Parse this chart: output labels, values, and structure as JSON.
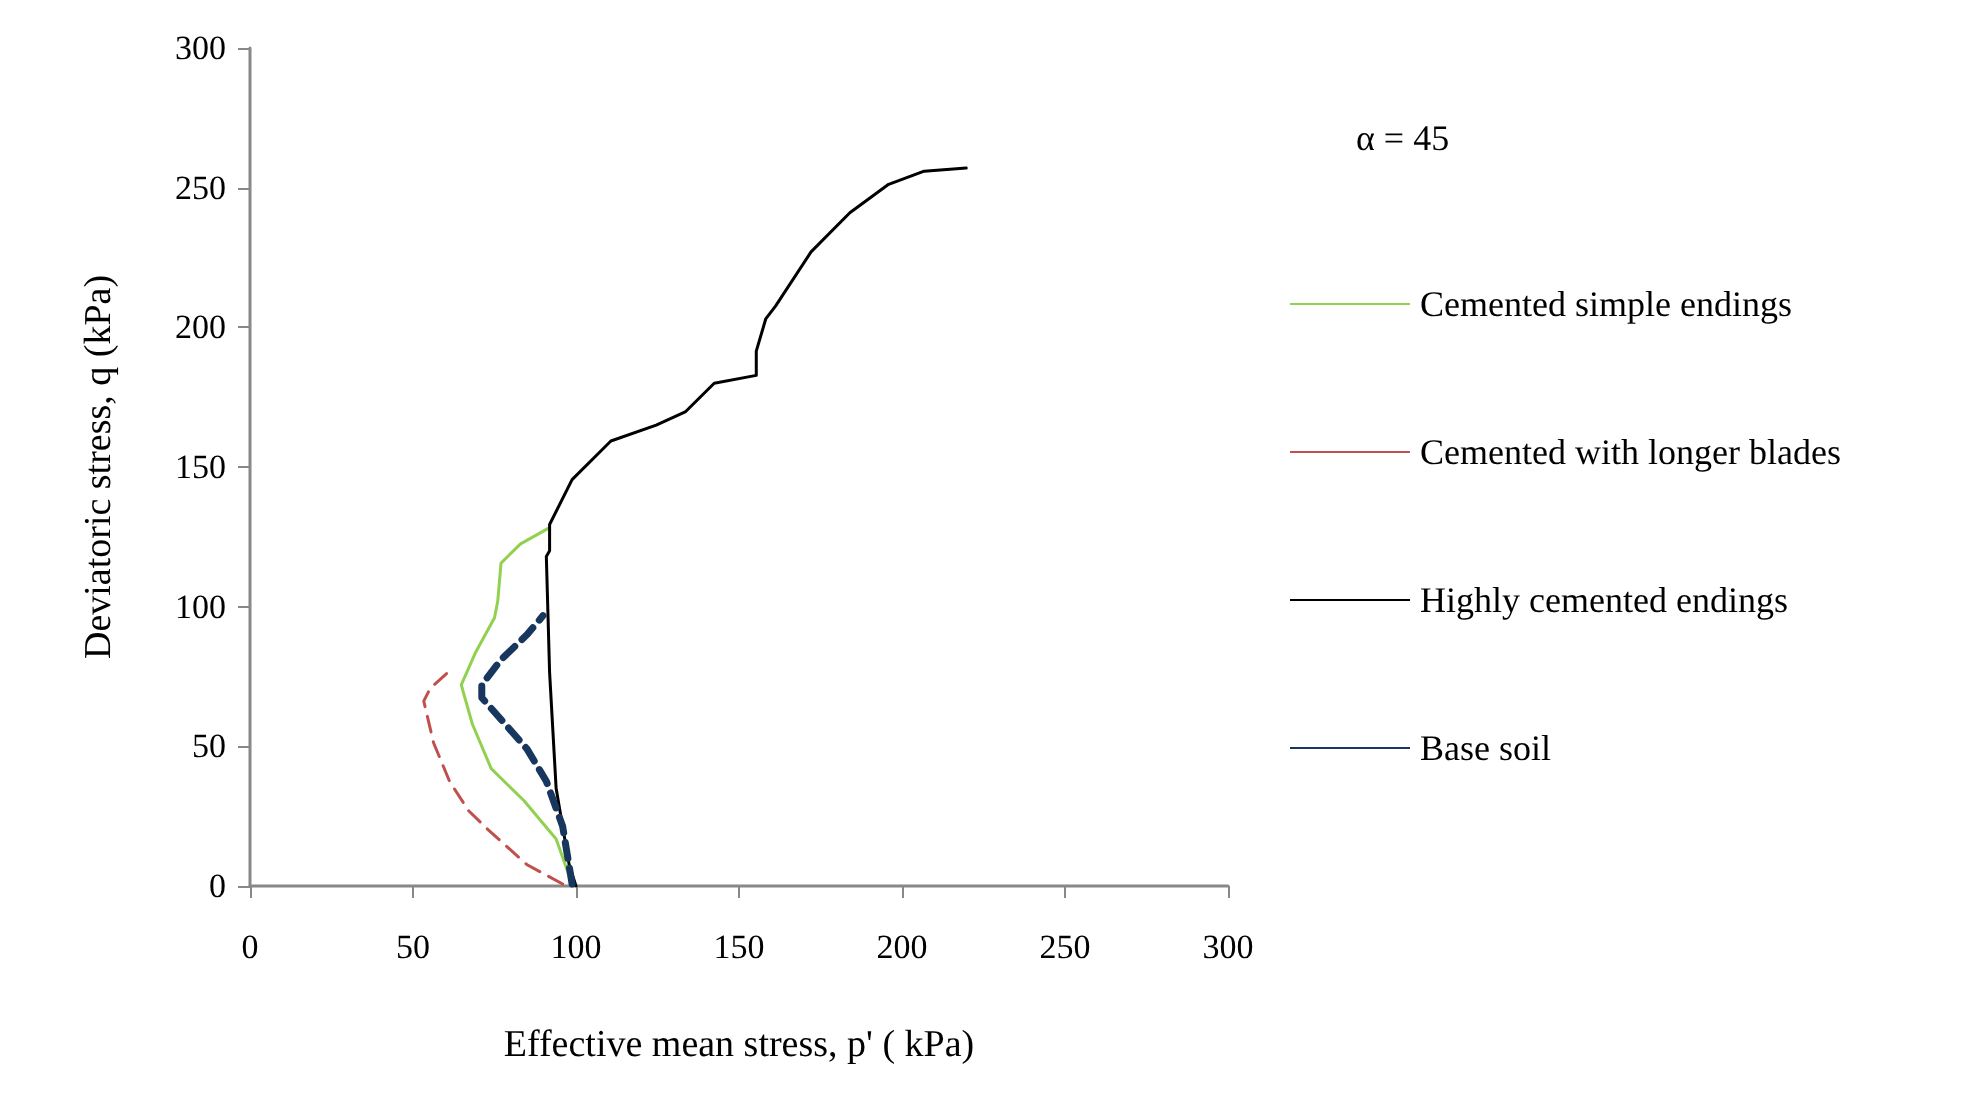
{
  "chart_data": {
    "type": "line",
    "xlabel": "Effective mean stress, p' ( kPa)",
    "ylabel": "Deviatoric stress, q (kPa)",
    "xlim": [
      0,
      300
    ],
    "ylim": [
      0,
      300
    ],
    "xticks": [
      0,
      50,
      100,
      150,
      200,
      250,
      300
    ],
    "yticks": [
      0,
      50,
      100,
      150,
      200,
      250,
      300
    ],
    "grid": false,
    "legend": "right",
    "marker": "none",
    "annotations": [
      "α = 45"
    ],
    "series": [
      {
        "name": "Cemented simple endings",
        "color": "#92d050",
        "line_style": "solid",
        "x": [
          98.8,
          93.9,
          84,
          74,
          68.2,
          64.8,
          69.1,
          75,
          76,
          77,
          83,
          91.9
        ],
        "values": [
          0.7,
          16.8,
          30.6,
          42,
          58,
          72,
          83.4,
          96,
          102,
          115.6,
          122.5,
          128.3
        ]
      },
      {
        "name": "Cemented with longer blades",
        "color": "#c0504d",
        "line_style": "dashed",
        "x": [
          95.9,
          85,
          73,
          67,
          61.2,
          56.3,
          53.3,
          55.3,
          61.2
        ],
        "values": [
          0.7,
          7.6,
          20.2,
          27,
          37.5,
          51.3,
          66.2,
          70.8,
          77
        ]
      },
      {
        "name": "Highly cemented endings",
        "color": "#000000",
        "line_style": "solid",
        "x": [
          100,
          97.9,
          93.9,
          91.9,
          90.9,
          91.9,
          91.9,
          98.8,
          110.7,
          124.6,
          133.5,
          142.4,
          155.3,
          155.3,
          158.2,
          161.2,
          172.1,
          184,
          195.9,
          206.8,
          219.7
        ],
        "values": [
          0,
          7.6,
          35,
          76.5,
          118,
          120,
          129.4,
          145.5,
          159.3,
          165,
          169.7,
          180,
          182.8,
          191.5,
          203,
          207.6,
          227,
          241,
          251.2,
          255.9,
          257
        ]
      },
      {
        "name": "Base soil",
        "color": "#17375e",
        "line_style": "dashed",
        "x": [
          98.8,
          95.9,
          90.9,
          85,
          79,
          71.1,
          71.1,
          77,
          85,
          89.9
        ],
        "values": [
          0.7,
          21.4,
          37.5,
          49,
          57,
          67.4,
          72,
          81,
          90,
          96.8
        ]
      }
    ]
  }
}
